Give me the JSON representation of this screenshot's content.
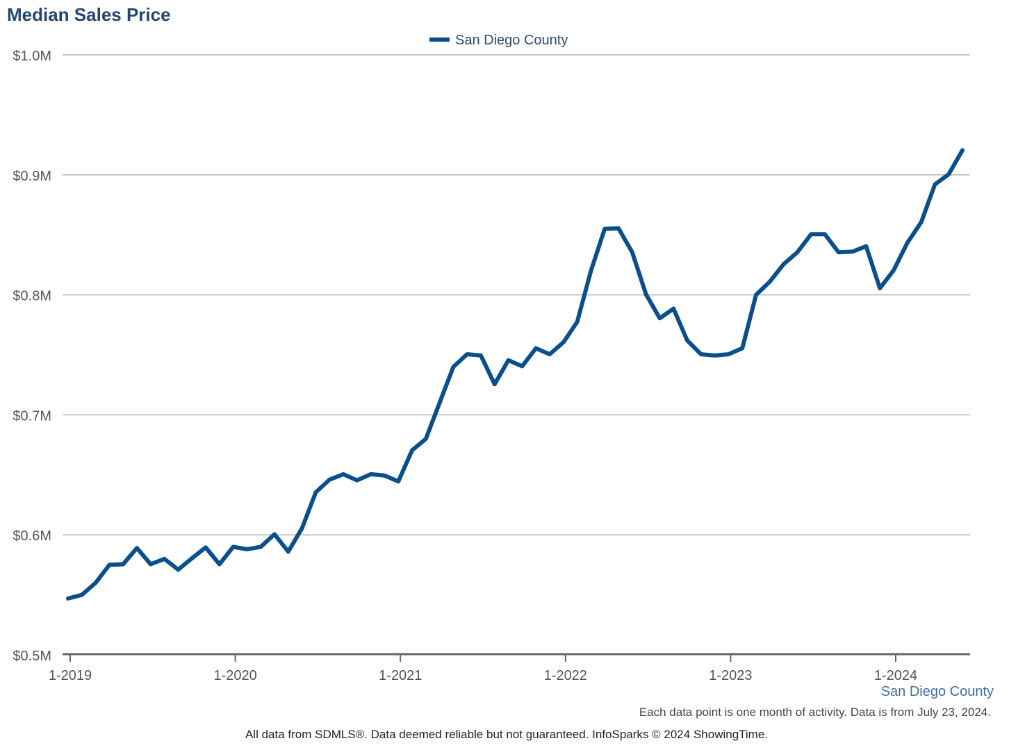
{
  "chart_data": {
    "type": "line",
    "title": "Median Sales Price",
    "xlabel": "",
    "ylabel": "",
    "ylim": [
      500000,
      1000000
    ],
    "y_ticks": [
      500000,
      600000,
      700000,
      800000,
      900000,
      1000000
    ],
    "y_tick_labels": [
      "$0.5M",
      "$0.6M",
      "$0.7M",
      "$0.8M",
      "$0.9M",
      "$1.0M"
    ],
    "x_tick_labels": [
      "1-2019",
      "1-2020",
      "1-2021",
      "1-2022",
      "1-2023",
      "1-2024"
    ],
    "x_tick_month_index": [
      0,
      12,
      24,
      36,
      48,
      60
    ],
    "legend": "top-center",
    "grid": true,
    "series": [
      {
        "name": "San Diego County",
        "color": "#0b4f8a",
        "start": "1-2019",
        "values": [
          547000,
          550000,
          560000,
          575000,
          575500,
          589000,
          575500,
          580000,
          571000,
          580500,
          589500,
          575500,
          590000,
          588000,
          590000,
          600500,
          586000,
          605500,
          635500,
          646000,
          650500,
          645500,
          650500,
          649500,
          644500,
          670500,
          680000,
          710000,
          740000,
          750500,
          749500,
          725500,
          745500,
          740500,
          755500,
          750500,
          760500,
          777500,
          820000,
          855000,
          855500,
          835500,
          800500,
          780500,
          788500,
          762000,
          750500,
          749500,
          750500,
          755500,
          800000,
          811000,
          825500,
          835500,
          850500,
          850500,
          835500,
          836000,
          840500,
          805500,
          820500,
          843500,
          860500,
          892000,
          900500,
          920500
        ]
      }
    ]
  },
  "labels": {
    "title": "Median Sales Price",
    "legend_label": "San Diego County",
    "region_label": "San Diego County",
    "note_monthly": "Each data point is one month of activity. Data is from July 23, 2024.",
    "note_source": "All data from SDMLS®. Data deemed reliable but not guaranteed. InfoSparks © 2024 ShowingTime."
  }
}
